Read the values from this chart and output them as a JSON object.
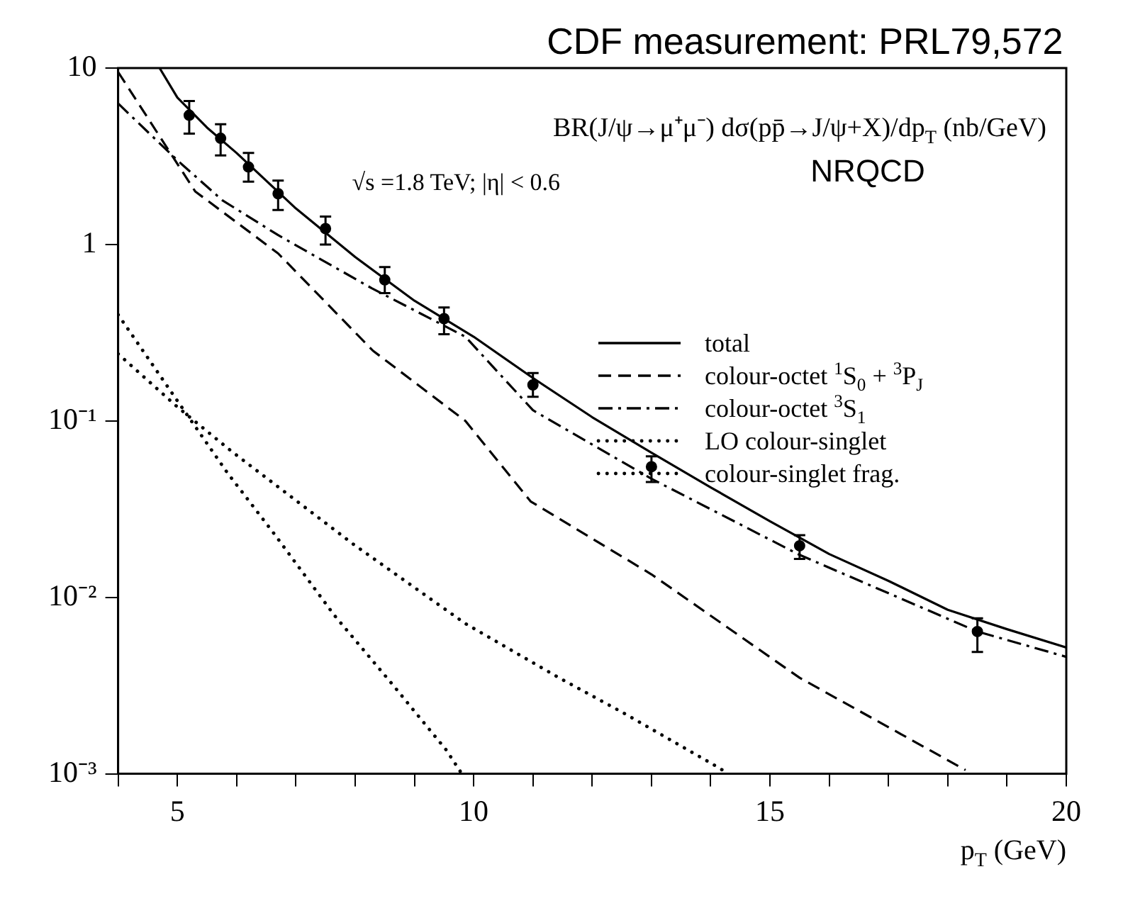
{
  "chart_data": {
    "type": "line",
    "title": "CDF measurement: PRL79,572",
    "xlabel": "p$_{T}$ (GeV)",
    "annotations": [
      "BR(J/ψ→μ⁺μ⁻) dσ(pp̄→J/ψ+X)/dp$_{T}$ (nb/GeV)",
      "√s =1.8 TeV; |η| < 0.6",
      "NRQCD"
    ],
    "log": "y",
    "grid": false,
    "legend": "right",
    "xlim": [
      4,
      20
    ],
    "xticks": [
      {
        "value": 4,
        "label": null
      },
      5,
      {
        "value": 6,
        "label": null
      },
      {
        "value": 7,
        "label": null
      },
      {
        "value": 8,
        "label": null
      },
      {
        "value": 9,
        "label": null
      },
      10,
      {
        "value": 11,
        "label": null
      },
      {
        "value": 12,
        "label": null
      },
      {
        "value": 13,
        "label": null
      },
      {
        "value": 14,
        "label": null
      },
      15,
      {
        "value": 16,
        "label": null
      },
      {
        "value": 17,
        "label": null
      },
      {
        "value": 18,
        "label": null
      },
      {
        "value": 19,
        "label": null
      },
      20
    ],
    "ylim": [
      0.001,
      10
    ],
    "yticks": [
      {
        "value": 0.001,
        "label": "10⁻³"
      },
      {
        "value": 0.01,
        "label": "10⁻²"
      },
      {
        "value": 0.1,
        "label": "10⁻¹"
      },
      1,
      10
    ],
    "series": [
      {
        "type": "scatter",
        "color": "#000000",
        "marker": "circle",
        "x": [
          5.2,
          5.73,
          6.2,
          6.7,
          7.5,
          8.5,
          9.5,
          11,
          13,
          15.5,
          18.5
        ],
        "values": [
          5.4,
          4.0,
          2.75,
          1.94,
          1.23,
          0.63,
          0.38,
          0.16,
          0.055,
          0.0196,
          0.0064
        ],
        "errors": [
          [
            4.25,
            6.5
          ],
          [
            3.2,
            4.8
          ],
          [
            2.27,
            3.3
          ],
          [
            1.57,
            2.3
          ],
          [
            1.0,
            1.44
          ],
          [
            0.53,
            0.745
          ],
          [
            0.31,
            0.44
          ],
          [
            0.137,
            0.187
          ],
          [
            0.045,
            0.063
          ],
          [
            0.0165,
            0.0225
          ],
          [
            0.0049,
            0.0076
          ]
        ]
      },
      {
        "name": "total",
        "color": "#000000",
        "line_style": "solid",
        "x": [
          4.7,
          5,
          5.5,
          6,
          7,
          8,
          9,
          10,
          11,
          12,
          13,
          14,
          15,
          16,
          17,
          18,
          19,
          20
        ],
        "values": [
          10,
          6.8,
          4.6,
          3.3,
          1.6,
          0.85,
          0.48,
          0.3,
          0.175,
          0.105,
          0.066,
          0.042,
          0.027,
          0.0176,
          0.0124,
          0.0085,
          0.0066,
          0.0052
        ]
      },
      {
        "name": "colour-octet $^{1}$S$_{0}$ + $^{3}$P$_{J}$",
        "color": "#000000",
        "line_style": "dashed",
        "x": [
          4,
          5.3,
          6.7,
          8.3,
          9.86,
          10.96,
          13,
          15.5,
          18.3
        ],
        "values": [
          9.5,
          2.0,
          0.89,
          0.25,
          0.1,
          0.035,
          0.0135,
          0.0035,
          0.00105
        ]
      },
      {
        "name": "colour-octet $^{3}$S$_{1}$",
        "color": "#000000",
        "line_style": "dashdot",
        "x": [
          4,
          5,
          5.76,
          6.7,
          8.28,
          9.86,
          11,
          13,
          15.5,
          18.5,
          20
        ],
        "values": [
          6.3,
          3.0,
          1.78,
          1.13,
          0.565,
          0.3,
          0.115,
          0.047,
          0.0174,
          0.0064,
          0.0046
        ]
      },
      {
        "name": "LO colour-singlet",
        "color": "#000000",
        "line_style": "dotted",
        "x": [
          4,
          5,
          5.84,
          6.63,
          7.65,
          8.6,
          9.54,
          9.8
        ],
        "values": [
          0.4,
          0.13,
          0.051,
          0.023,
          0.0079,
          0.0033,
          0.00136,
          0.001
        ]
      },
      {
        "name": "colour-singlet frag.",
        "color": "#000000",
        "line_style": "dotted",
        "x": [
          4,
          5,
          5.92,
          7.97,
          9.86,
          11.44,
          12.54,
          14.1,
          14.3
        ],
        "values": [
          0.24,
          0.12,
          0.067,
          0.02,
          0.0071,
          0.0035,
          0.0022,
          0.0011,
          0.001
        ]
      }
    ]
  }
}
